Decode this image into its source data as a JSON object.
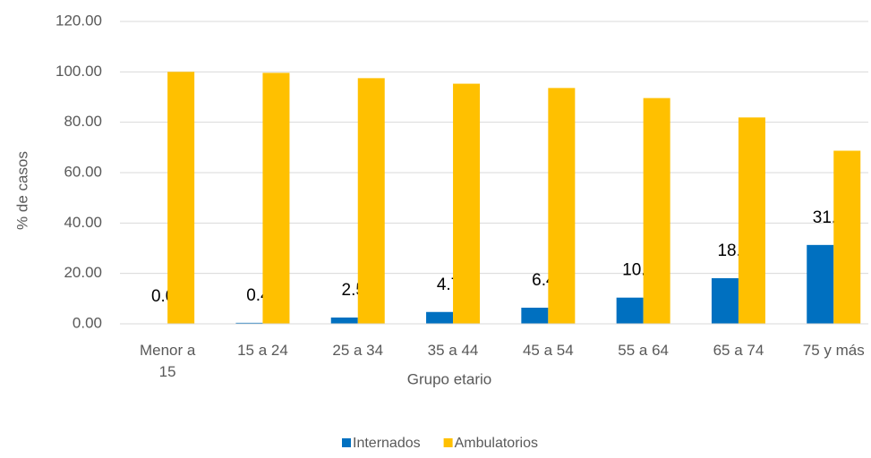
{
  "chart_data": {
    "type": "bar",
    "y_label": "% de casos",
    "x_label": "Grupo etario",
    "categories": [
      "Menor a 15",
      "15 a 24",
      "25 a 34",
      "35 a 44",
      "45 a 54",
      "55 a 64",
      "65 a 74",
      "75 y más"
    ],
    "series": [
      {
        "name": "Internados",
        "color": "#0070c0",
        "values": [
          0.0,
          0.4,
          2.5,
          4.7,
          6.4,
          10.4,
          18.1,
          31.3
        ],
        "value_labels": [
          "0.0",
          "0.4",
          "2.5",
          "4.7",
          "6.4",
          "10.4",
          "18.1",
          "31.3"
        ]
      },
      {
        "name": "Ambulatorios",
        "color": "#ffc000",
        "values": [
          100.0,
          99.6,
          97.5,
          95.3,
          93.6,
          89.6,
          81.9,
          68.7
        ]
      }
    ],
    "ylim": [
      0,
      120
    ],
    "yticks": [
      {
        "value": 0,
        "label": "0.00"
      },
      {
        "value": 20,
        "label": "20.00"
      },
      {
        "value": 40,
        "label": "40.00"
      },
      {
        "value": 60,
        "label": "60.00"
      },
      {
        "value": 80,
        "label": "80.00"
      },
      {
        "value": 100,
        "label": "100.00"
      },
      {
        "value": 120,
        "label": "120.00"
      }
    ],
    "grid": true,
    "legend": "bottom"
  }
}
